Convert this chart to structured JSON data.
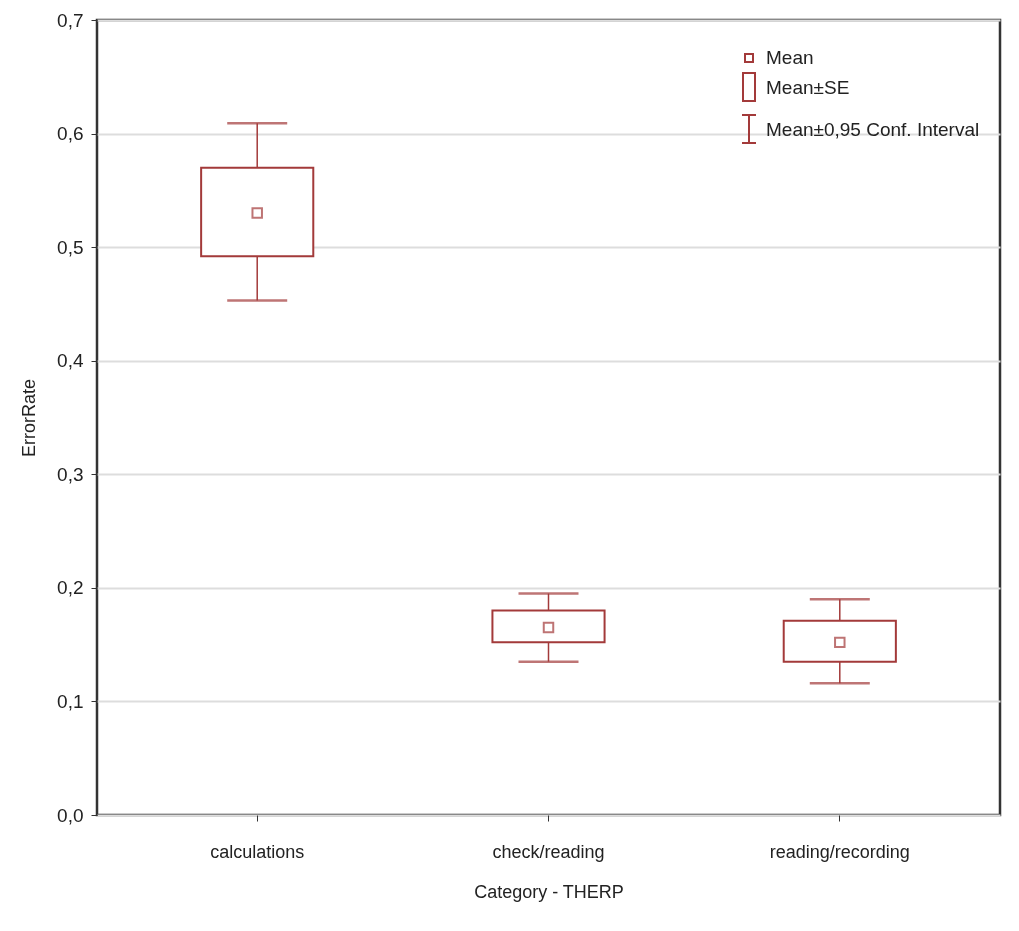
{
  "chart_data": {
    "type": "box",
    "xlabel": "Category - THERP",
    "ylabel": "ErrorRate",
    "categories": [
      "calculations",
      "check/reading",
      "reading/recording"
    ],
    "series": [
      {
        "color": "#a33a3a",
        "boxes": [
          {
            "low": 0.453,
            "q1": 0.492,
            "q3": 0.57,
            "high": 0.609,
            "mean": 0.53
          },
          {
            "low": 0.135,
            "q1": 0.152,
            "q3": 0.18,
            "high": 0.195,
            "mean": 0.165
          },
          {
            "low": 0.116,
            "q1": 0.135,
            "q3": 0.171,
            "high": 0.19,
            "mean": 0.152
          }
        ]
      }
    ],
    "ylim": [
      0,
      0.7
    ],
    "yticks": [
      {
        "value": 0,
        "label": "0,0"
      },
      {
        "value": 0.1,
        "label": "0,1"
      },
      {
        "value": 0.2,
        "label": "0,2"
      },
      {
        "value": 0.3,
        "label": "0,3"
      },
      {
        "value": 0.4,
        "label": "0,4"
      },
      {
        "value": 0.5,
        "label": "0,5"
      },
      {
        "value": 0.6,
        "label": "0,6"
      },
      {
        "value": 0.7,
        "label": "0,7"
      }
    ],
    "grid": "y",
    "marker": "square",
    "annotations": [
      "Mean",
      "Mean±SE",
      "Mean±0,95 Conf. Interval"
    ]
  }
}
